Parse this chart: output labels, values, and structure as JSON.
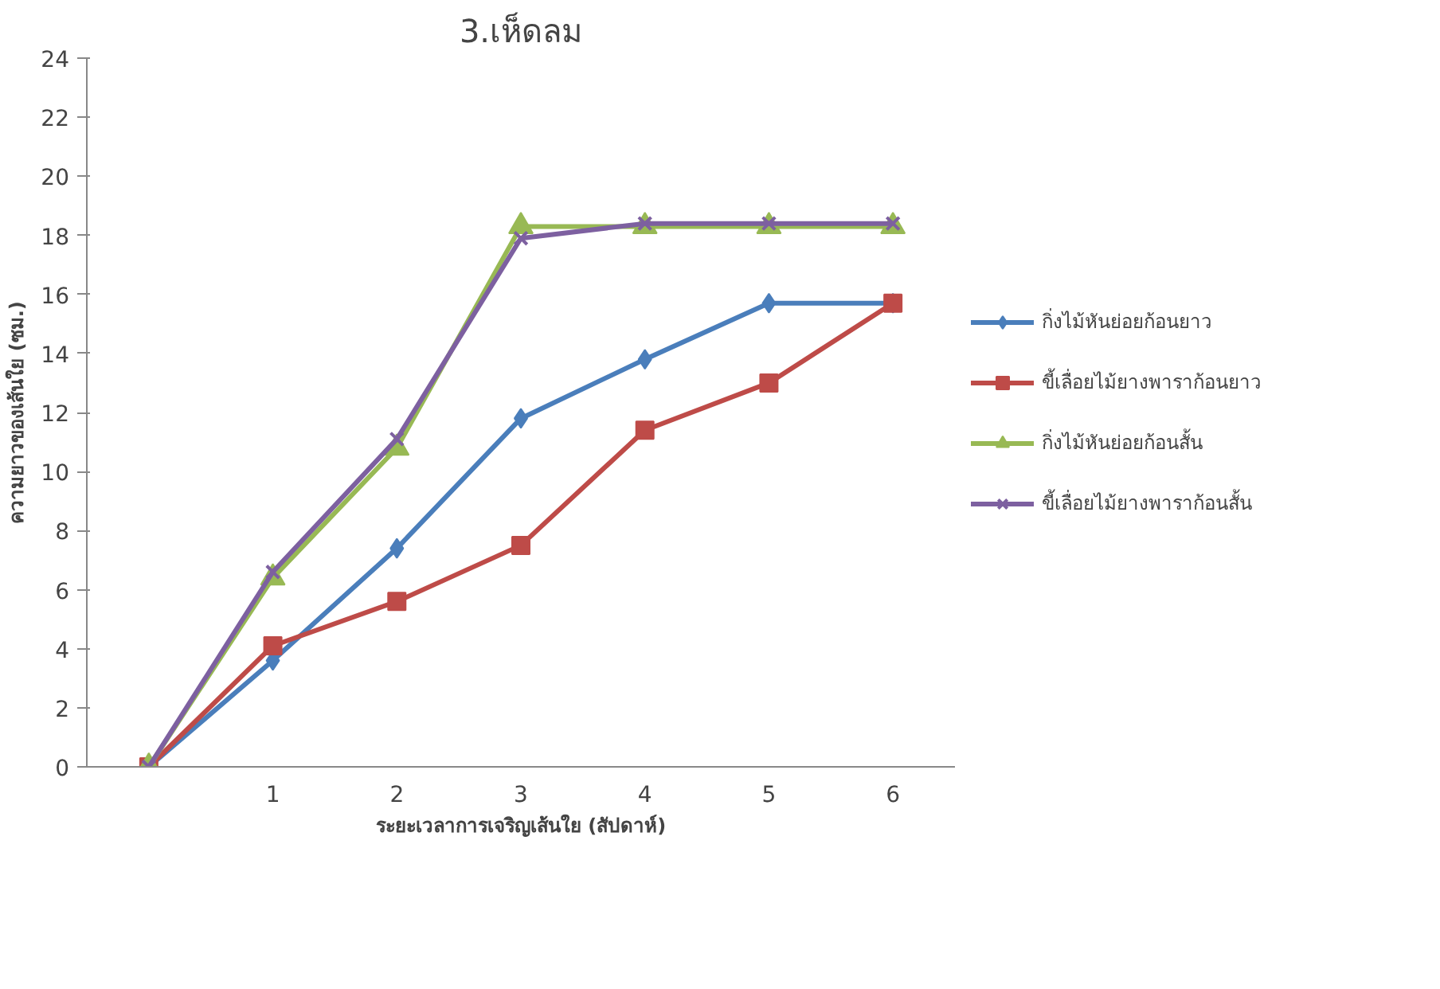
{
  "chart_data": {
    "type": "line",
    "title": "3.เห็ดลม",
    "xlabel": "ระยะเวลาการเจริญเส้นใย (สัปดาห์)",
    "ylabel": "ความยาวของเส้นใย (ซม.)",
    "categories": [
      null,
      "1",
      "2",
      "3",
      "4",
      "5",
      "6"
    ],
    "ylim": [
      0,
      24
    ],
    "yticks": [
      0,
      2,
      4,
      6,
      8,
      10,
      12,
      14,
      16,
      18,
      20,
      22,
      24
    ],
    "grid": false,
    "legend": "right",
    "series": [
      {
        "name": "กิ่งไม้หันย่อยก้อนยาว",
        "color": "#4a7ebb",
        "marker": "diamond",
        "values": [
          0,
          3.6,
          7.4,
          11.8,
          13.8,
          15.7,
          15.7
        ]
      },
      {
        "name": "ขี้เลื่อยไม้ยางพาราก้อนยาว",
        "color": "#be4b48",
        "marker": "square",
        "values": [
          0,
          4.1,
          5.6,
          7.5,
          11.4,
          13.0,
          15.7
        ]
      },
      {
        "name": "กิ่งไม้หันย่อยก้อนสั้น",
        "color": "#98b954",
        "marker": "triangle",
        "values": [
          0,
          6.4,
          10.8,
          18.3,
          18.3,
          18.3,
          18.3
        ]
      },
      {
        "name": "ขี้เลื่อยไม้ยางพาราก้อนสั้น",
        "color": "#7d60a0",
        "marker": "x",
        "values": [
          0,
          6.6,
          11.1,
          17.9,
          18.4,
          18.4,
          18.4
        ]
      }
    ]
  }
}
